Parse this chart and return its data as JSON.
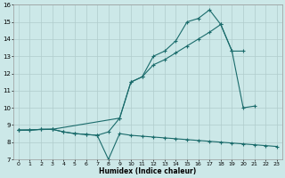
{
  "bg_color": "#cce8e8",
  "grid_color": "#b0cccc",
  "line_color": "#1a6b6b",
  "xlabel": "Humidex (Indice chaleur)",
  "xlim": [
    -0.5,
    23.5
  ],
  "ylim": [
    7,
    16
  ],
  "xticks": [
    0,
    1,
    2,
    3,
    4,
    5,
    6,
    7,
    8,
    9,
    10,
    11,
    12,
    13,
    14,
    15,
    16,
    17,
    18,
    19,
    20,
    21,
    22,
    23
  ],
  "yticks": [
    7,
    8,
    9,
    10,
    11,
    12,
    13,
    14,
    15,
    16
  ],
  "line1_x": [
    0,
    1,
    2,
    3,
    4,
    5,
    6,
    7,
    8,
    9,
    10,
    11,
    12,
    13,
    14,
    15,
    16,
    17,
    18,
    19,
    20,
    21,
    22,
    23
  ],
  "line1_y": [
    8.7,
    8.7,
    8.75,
    8.75,
    8.6,
    8.5,
    8.45,
    8.4,
    7.0,
    8.5,
    8.4,
    8.35,
    8.3,
    8.25,
    8.2,
    8.15,
    8.1,
    8.05,
    8.0,
    7.95,
    7.9,
    7.85,
    7.8,
    7.75
  ],
  "line2_x": [
    0,
    3,
    9,
    10,
    11,
    12,
    13,
    14,
    15,
    16,
    17,
    18,
    19,
    20
  ],
  "line2_y": [
    8.7,
    8.75,
    9.4,
    11.5,
    11.8,
    12.5,
    12.8,
    13.2,
    13.6,
    14.0,
    14.4,
    14.85,
    13.3,
    13.3
  ],
  "line3_x": [
    0,
    1,
    2,
    3,
    4,
    5,
    6,
    7,
    8,
    9,
    10,
    11,
    12,
    13,
    14,
    15,
    16,
    17,
    18,
    19,
    20,
    21
  ],
  "line3_y": [
    8.7,
    8.7,
    8.75,
    8.75,
    8.6,
    8.5,
    8.45,
    8.4,
    8.6,
    9.4,
    11.5,
    11.8,
    13.0,
    13.3,
    13.9,
    15.0,
    15.2,
    15.7,
    14.85,
    13.3,
    10.0,
    10.1
  ]
}
